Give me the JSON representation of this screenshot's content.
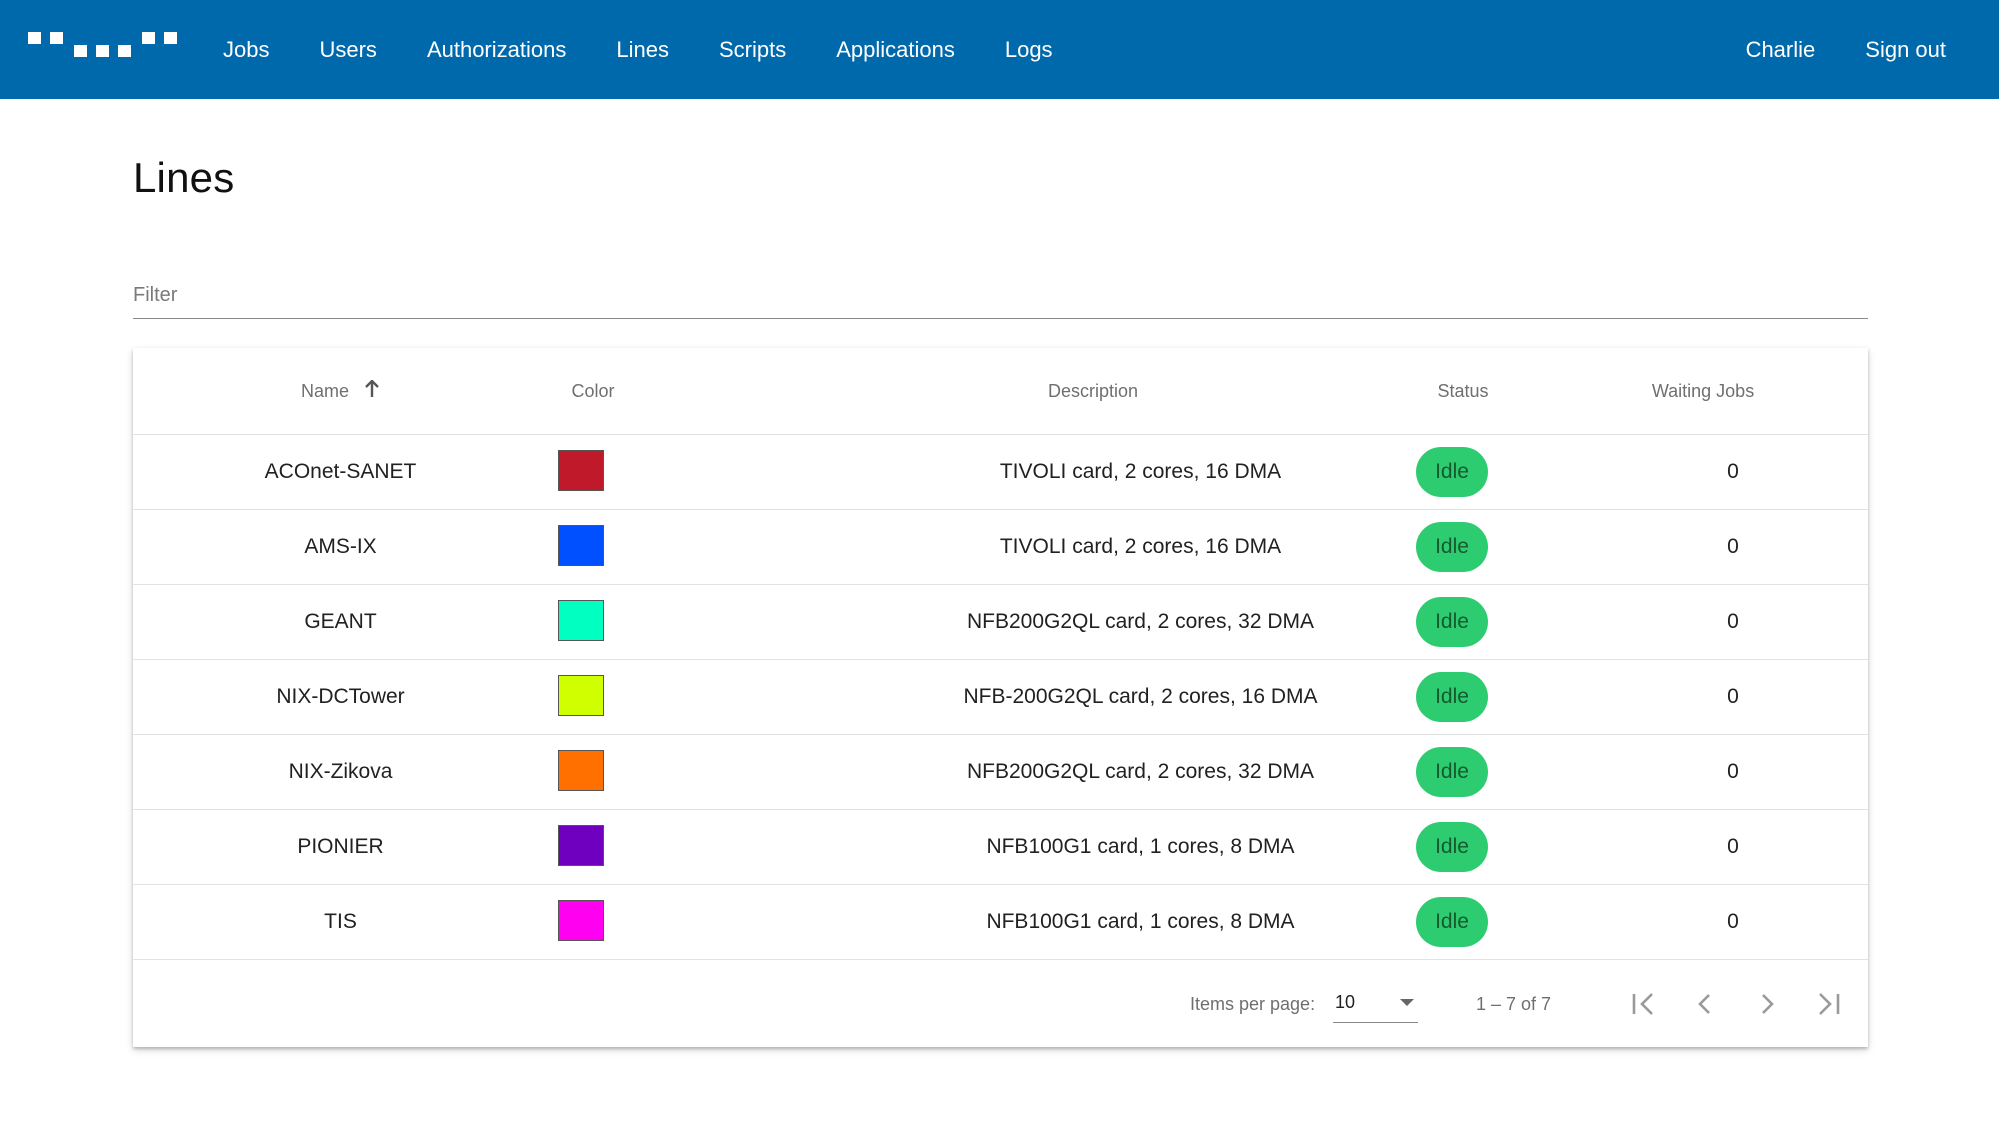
{
  "nav": {
    "items": [
      "Jobs",
      "Users",
      "Authorizations",
      "Lines",
      "Scripts",
      "Applications",
      "Logs"
    ],
    "user": "Charlie",
    "sign_out": "Sign out"
  },
  "page": {
    "title": "Lines"
  },
  "filter": {
    "placeholder": "Filter",
    "value": ""
  },
  "table": {
    "headers": {
      "name": "Name",
      "color": "Color",
      "description": "Description",
      "status": "Status",
      "waiting_jobs": "Waiting Jobs"
    },
    "sort": {
      "column": "Name",
      "direction": "ascending"
    },
    "rows": [
      {
        "name": "ACOnet-SANET",
        "color": "#c0192a",
        "description": "TIVOLI card, 2 cores, 16 DMA",
        "status": "Idle",
        "waiting_jobs": "0"
      },
      {
        "name": "AMS-IX",
        "color": "#0050ff",
        "description": "TIVOLI card, 2 cores, 16 DMA",
        "status": "Idle",
        "waiting_jobs": "0"
      },
      {
        "name": "GEANT",
        "color": "#00ffc0",
        "description": "NFB200G2QL card, 2 cores, 32 DMA",
        "status": "Idle",
        "waiting_jobs": "0"
      },
      {
        "name": "NIX-DCTower",
        "color": "#d0ff00",
        "description": "NFB-200G2QL card, 2 cores, 16 DMA",
        "status": "Idle",
        "waiting_jobs": "0"
      },
      {
        "name": "NIX-Zikova",
        "color": "#ff7000",
        "description": "NFB200G2QL card, 2 cores, 32 DMA",
        "status": "Idle",
        "waiting_jobs": "0"
      },
      {
        "name": "PIONIER",
        "color": "#7000c0",
        "description": "NFB100G1 card, 1 cores, 8 DMA",
        "status": "Idle",
        "waiting_jobs": "0"
      },
      {
        "name": "TIS",
        "color": "#ff00f0",
        "description": "NFB100G1 card, 1 cores, 8 DMA",
        "status": "Idle",
        "waiting_jobs": "0"
      }
    ]
  },
  "paginator": {
    "items_per_page_label": "Items per page:",
    "items_per_page": "10",
    "range": "1 – 7 of 7"
  },
  "colors": {
    "topbar": "#0069ab",
    "status_idle": "#2ecc71"
  }
}
